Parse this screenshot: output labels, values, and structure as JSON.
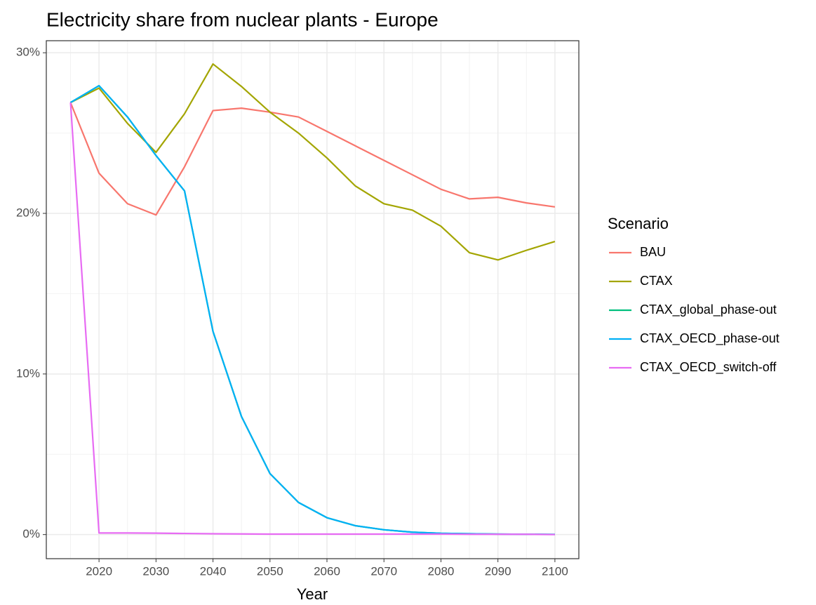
{
  "chart_data": {
    "type": "line",
    "title": "Electricity share from nuclear plants - Europe",
    "x_label": "Year",
    "legend_title": "Scenario",
    "legend_position": "right",
    "grid": true,
    "x": [
      2015,
      2020,
      2025,
      2030,
      2035,
      2040,
      2045,
      2050,
      2055,
      2060,
      2065,
      2070,
      2075,
      2080,
      2085,
      2090,
      2095,
      2100
    ],
    "xlim": [
      2010.75,
      2104.2
    ],
    "xticks": [
      2020,
      2030,
      2040,
      2050,
      2060,
      2070,
      2080,
      2090,
      2100
    ],
    "xminor": [
      2015,
      2025,
      2035,
      2045,
      2055,
      2065,
      2075,
      2085,
      2095
    ],
    "ylim": [
      -1.5,
      30.75
    ],
    "yticks": [
      {
        "value": 0,
        "label": "0%"
      },
      {
        "value": 10,
        "label": "10%"
      },
      {
        "value": 20,
        "label": "20%"
      },
      {
        "value": 30,
        "label": "30%"
      }
    ],
    "yminor": [
      5,
      15,
      25
    ],
    "series": [
      {
        "name": "BAU",
        "color": "#F8766D",
        "values": [
          26.9,
          22.5,
          20.6,
          19.9,
          22.9,
          26.4,
          26.55,
          26.3,
          26.0,
          25.1,
          24.2,
          23.3,
          22.4,
          21.5,
          20.9,
          21.0,
          20.65,
          20.4
        ]
      },
      {
        "name": "CTAX",
        "color": "#A3A500",
        "values": [
          26.9,
          27.8,
          25.6,
          23.8,
          26.2,
          29.3,
          27.9,
          26.3,
          25.0,
          23.45,
          21.7,
          20.6,
          20.2,
          19.2,
          17.55,
          17.1,
          17.7,
          18.25
        ]
      },
      {
        "name": "CTAX_global_phase-out",
        "color": "#00BF7D",
        "values": [
          26.9,
          27.95,
          26.0,
          23.6,
          21.4,
          12.65,
          7.35,
          3.8,
          2.0,
          1.05,
          0.55,
          0.3,
          0.15,
          0.08,
          0.05,
          0.03,
          0.02,
          0.01
        ]
      },
      {
        "name": "CTAX_OECD_phase-out",
        "color": "#00B0F6",
        "values": [
          26.9,
          27.95,
          26.0,
          23.6,
          21.4,
          12.65,
          7.35,
          3.8,
          2.0,
          1.05,
          0.55,
          0.3,
          0.15,
          0.08,
          0.05,
          0.03,
          0.02,
          0.01
        ]
      },
      {
        "name": "CTAX_OECD_switch-off",
        "color": "#E76BF3",
        "values": [
          26.9,
          0.1,
          0.1,
          0.09,
          0.07,
          0.05,
          0.04,
          0.03,
          0.03,
          0.03,
          0.03,
          0.03,
          0.03,
          0.03,
          0.02,
          0.02,
          0.02,
          0.0
        ]
      }
    ]
  }
}
